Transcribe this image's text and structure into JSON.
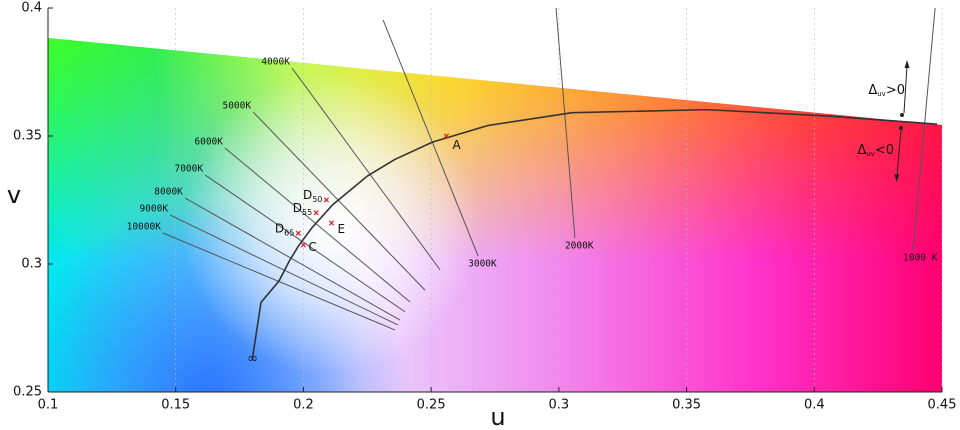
{
  "chart_data": {
    "type": "line",
    "xlabel": "u",
    "ylabel": "v",
    "xlim": [
      0.1,
      0.45
    ],
    "ylim": [
      0.25,
      0.4
    ],
    "xticks": [
      0.1,
      0.15,
      0.2,
      0.25,
      0.3,
      0.35,
      0.4,
      0.45
    ],
    "yticks": [
      0.25,
      0.3,
      0.35,
      0.4
    ],
    "grid": true,
    "series": [
      {
        "color": "#333333",
        "x": [
          0.1801,
          0.1834,
          0.1904,
          0.1946,
          0.1981,
          0.2033,
          0.2114,
          0.2251,
          0.2357,
          0.2505,
          0.2722,
          0.3051,
          0.3579,
          0.4058,
          0.4481
        ],
        "values": [
          0.2636,
          0.285,
          0.2933,
          0.3014,
          0.3071,
          0.3141,
          0.3231,
          0.3344,
          0.3408,
          0.3476,
          0.3541,
          0.3591,
          0.3603,
          0.3578,
          0.3546
        ]
      }
    ],
    "isotherms": [
      {
        "label": "5000K",
        "color": "#555555",
        "x": [
          0.1803,
          0.2476
        ],
        "values": [
          0.3594,
          0.2898
        ]
      },
      {
        "label": "6000K",
        "color": "#555555",
        "x": [
          0.1693,
          0.2417
        ],
        "values": [
          0.3453,
          0.2852
        ]
      },
      {
        "label": "7000K",
        "color": "#555555",
        "x": [
          0.1615,
          0.2398
        ],
        "values": [
          0.3348,
          0.2813
        ]
      },
      {
        "label": "8000K",
        "color": "#555555",
        "x": [
          0.1536,
          0.2378
        ],
        "values": [
          0.3258,
          0.2781
        ]
      },
      {
        "label": "9000K",
        "color": "#555555",
        "x": [
          0.1478,
          0.237
        ],
        "values": [
          0.3191,
          0.2762
        ]
      },
      {
        "label": "10000K",
        "color": "#555555",
        "x": [
          0.145,
          0.2359
        ],
        "values": [
          0.3121,
          0.2742
        ]
      },
      {
        "label": "4000K",
        "color": "#555555",
        "x": [
          0.1955,
          0.2535
        ],
        "values": [
          0.3766,
          0.2977
        ]
      },
      {
        "label": "3000K",
        "color": "#555555",
        "x": [
          0.2312,
          0.2684
        ],
        "values": [
          0.3953,
          0.3031
        ]
      },
      {
        "label": "2000K",
        "color": "#555555",
        "x": [
          0.2989,
          0.3063
        ],
        "values": [
          0.4,
          0.3102
        ]
      },
      {
        "label": "1000 K",
        "color": "#555555",
        "x": [
          0.4473,
          0.4387
        ],
        "values": [
          0.4,
          0.3055
        ]
      }
    ],
    "points": [
      {
        "label": "A",
        "x": 0.256,
        "y": 0.35,
        "color": "#e02020"
      },
      {
        "label": "D",
        "sub": "50",
        "x": 0.209,
        "y": 0.325,
        "color": "#e02020"
      },
      {
        "label": "D",
        "sub": "55",
        "x": 0.205,
        "y": 0.32,
        "color": "#e02020"
      },
      {
        "label": "E",
        "x": 0.211,
        "y": 0.316,
        "color": "#e02020"
      },
      {
        "label": "D",
        "sub": "65",
        "x": 0.198,
        "y": 0.312,
        "color": "#e02020"
      },
      {
        "label": "C",
        "x": 0.2,
        "y": 0.3074,
        "color": "#e02020"
      }
    ],
    "annotations": {
      "infinity": "∞",
      "above": {
        "base": "Δ",
        "sub": "uv",
        "rest": ">0"
      },
      "below": {
        "base": "Δ",
        "sub": "uv",
        "rest": "<0"
      }
    }
  }
}
